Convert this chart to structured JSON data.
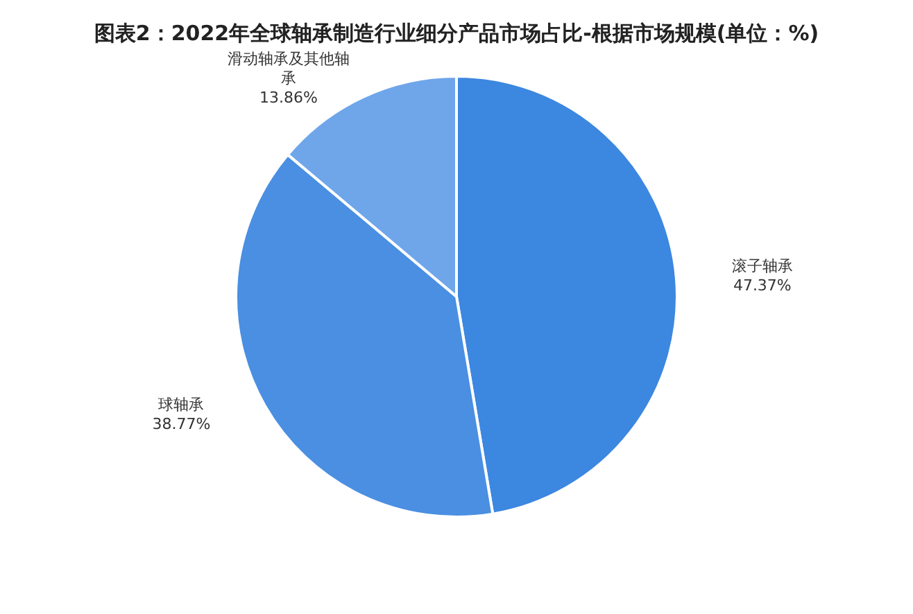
{
  "chart_data": {
    "type": "pie",
    "title": "图表2：2022年全球轴承制造行业细分产品市场占比-根据市场规模(单位：%)",
    "categories": [
      "滚子轴承",
      "球轴承",
      "滑动轴承及其他轴承"
    ],
    "values": [
      47.37,
      38.77,
      13.86
    ],
    "value_labels": [
      "47.37%",
      "38.77%",
      "13.86%"
    ],
    "colors": [
      "#3c87e0",
      "#4a8fe2",
      "#6fa6ea"
    ],
    "legend": false
  }
}
